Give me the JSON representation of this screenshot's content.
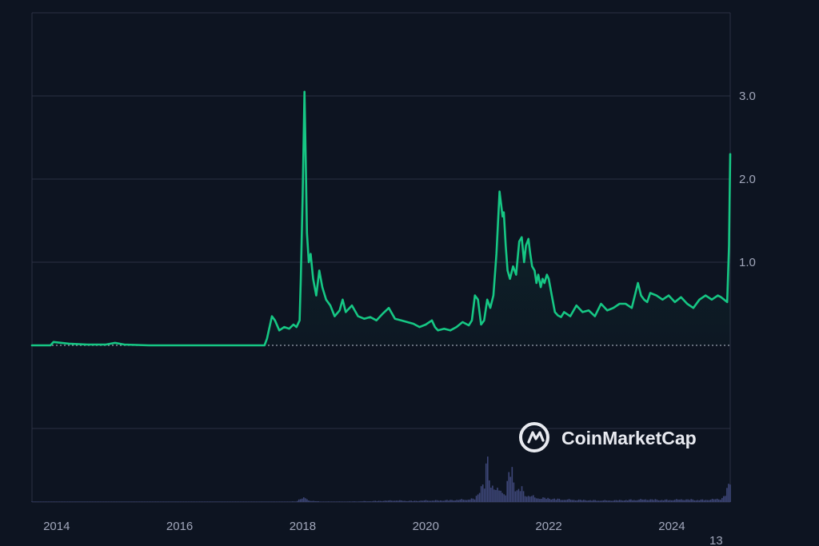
{
  "chart_data": {
    "type": "line",
    "title": "",
    "xlabel": "",
    "ylabel": "",
    "x_range": [
      2013.6,
      2024.95
    ],
    "ylim": [
      -1,
      4
    ],
    "baseline": 0,
    "grid": true,
    "x_ticks": [
      {
        "value": 2014,
        "label": "2014"
      },
      {
        "value": 2016,
        "label": "2016"
      },
      {
        "value": 2018,
        "label": "2018"
      },
      {
        "value": 2020,
        "label": "2020"
      },
      {
        "value": 2022,
        "label": "2022"
      },
      {
        "value": 2024,
        "label": "2024"
      }
    ],
    "y_ticks": [
      {
        "value": 1.0,
        "label": "1.0"
      },
      {
        "value": 2.0,
        "label": "2.0"
      },
      {
        "value": 3.0,
        "label": "3.0"
      }
    ],
    "corner_label": "13",
    "colors": {
      "line": "#16c784",
      "grid": "#2b3142",
      "baseline": "#9aa0b0",
      "volume": "#3d4677",
      "background": "#0d1421"
    },
    "series": [
      {
        "x": [
          2013.6,
          2013.9,
          2013.95,
          2014.2,
          2014.5,
          2014.8,
          2014.95,
          2015.1,
          2015.5,
          2016.0,
          2016.5,
          2017.0,
          2017.38,
          2017.42,
          2017.5,
          2017.55,
          2017.62,
          2017.7,
          2017.78,
          2017.85,
          2017.9,
          2017.95,
          2017.97,
          2018.0,
          2018.03,
          2018.05,
          2018.07,
          2018.1,
          2018.13,
          2018.17,
          2018.22,
          2018.27,
          2018.32,
          2018.38,
          2018.45,
          2018.52,
          2018.6,
          2018.65,
          2018.7,
          2018.8,
          2018.9,
          2019.0,
          2019.1,
          2019.2,
          2019.3,
          2019.4,
          2019.5,
          2019.6,
          2019.7,
          2019.8,
          2019.9,
          2020.0,
          2020.1,
          2020.15,
          2020.2,
          2020.3,
          2020.4,
          2020.5,
          2020.6,
          2020.7,
          2020.75,
          2020.8,
          2020.85,
          2020.9,
          2020.95,
          2021.0,
          2021.05,
          2021.1,
          2021.15,
          2021.2,
          2021.25,
          2021.27,
          2021.3,
          2021.33,
          2021.37,
          2021.42,
          2021.47,
          2021.52,
          2021.56,
          2021.6,
          2021.63,
          2021.67,
          2021.7,
          2021.73,
          2021.77,
          2021.8,
          2021.83,
          2021.87,
          2021.9,
          2021.93,
          2021.97,
          2022.0,
          2022.05,
          2022.1,
          2022.15,
          2022.2,
          2022.25,
          2022.35,
          2022.45,
          2022.55,
          2022.65,
          2022.75,
          2022.85,
          2022.95,
          2023.05,
          2023.15,
          2023.25,
          2023.35,
          2023.45,
          2023.5,
          2023.55,
          2023.6,
          2023.65,
          2023.75,
          2023.85,
          2023.95,
          2024.05,
          2024.15,
          2024.25,
          2024.35,
          2024.45,
          2024.55,
          2024.65,
          2024.75,
          2024.8,
          2024.85,
          2024.9,
          2024.93,
          2024.95
        ],
        "y": [
          0.0,
          0.0,
          0.04,
          0.02,
          0.01,
          0.01,
          0.03,
          0.01,
          0.0,
          0.0,
          0.0,
          0.0,
          0.0,
          0.08,
          0.35,
          0.3,
          0.18,
          0.22,
          0.2,
          0.25,
          0.22,
          0.3,
          0.8,
          1.8,
          3.05,
          2.2,
          1.35,
          1.0,
          1.1,
          0.8,
          0.6,
          0.9,
          0.7,
          0.55,
          0.48,
          0.35,
          0.42,
          0.55,
          0.4,
          0.48,
          0.35,
          0.32,
          0.34,
          0.3,
          0.38,
          0.45,
          0.32,
          0.3,
          0.28,
          0.26,
          0.22,
          0.25,
          0.3,
          0.22,
          0.18,
          0.2,
          0.18,
          0.22,
          0.28,
          0.24,
          0.3,
          0.6,
          0.55,
          0.25,
          0.3,
          0.55,
          0.45,
          0.6,
          1.1,
          1.85,
          1.55,
          1.6,
          1.2,
          0.9,
          0.8,
          0.95,
          0.85,
          1.25,
          1.3,
          1.0,
          1.2,
          1.28,
          1.1,
          0.95,
          0.9,
          0.75,
          0.85,
          0.7,
          0.8,
          0.75,
          0.85,
          0.8,
          0.6,
          0.4,
          0.36,
          0.34,
          0.4,
          0.35,
          0.48,
          0.4,
          0.42,
          0.35,
          0.5,
          0.42,
          0.45,
          0.5,
          0.5,
          0.45,
          0.75,
          0.6,
          0.55,
          0.52,
          0.63,
          0.6,
          0.55,
          0.6,
          0.52,
          0.58,
          0.5,
          0.45,
          0.55,
          0.6,
          0.55,
          0.6,
          0.58,
          0.55,
          0.52,
          1.2,
          2.3
        ]
      }
    ],
    "volume": {
      "x": [
        2013.6,
        2014.5,
        2015.5,
        2016.5,
        2017.3,
        2017.5,
        2017.7,
        2017.9,
        2017.96,
        2018.0,
        2018.04,
        2018.08,
        2018.15,
        2018.3,
        2018.5,
        2018.8,
        2019.2,
        2019.5,
        2019.8,
        2020.0,
        2020.2,
        2020.5,
        2020.8,
        2020.9,
        2020.95,
        2021.0,
        2021.05,
        2021.1,
        2021.15,
        2021.22,
        2021.3,
        2021.35,
        2021.4,
        2021.45,
        2021.5,
        2021.55,
        2021.6,
        2021.7,
        2021.8,
        2022.0,
        2022.2,
        2022.5,
        2022.8,
        2023.0,
        2023.3,
        2023.6,
        2023.9,
        2024.2,
        2024.5,
        2024.8,
        2024.88,
        2024.92,
        2024.95
      ],
      "values": [
        0.0,
        0.0,
        0.0,
        0.0,
        0.002,
        0.004,
        0.006,
        0.012,
        0.08,
        0.05,
        0.1,
        0.04,
        0.02,
        0.01,
        0.008,
        0.01,
        0.02,
        0.03,
        0.02,
        0.03,
        0.03,
        0.04,
        0.06,
        0.3,
        0.28,
        0.85,
        0.4,
        0.3,
        0.2,
        0.25,
        0.15,
        0.5,
        0.65,
        0.3,
        0.2,
        0.3,
        0.15,
        0.12,
        0.08,
        0.07,
        0.05,
        0.04,
        0.03,
        0.03,
        0.04,
        0.05,
        0.04,
        0.05,
        0.04,
        0.06,
        0.15,
        0.3,
        0.45
      ]
    }
  },
  "watermark": {
    "brand_text": "CoinMarketCap",
    "icon": "coinmarketcap-logo-icon"
  }
}
